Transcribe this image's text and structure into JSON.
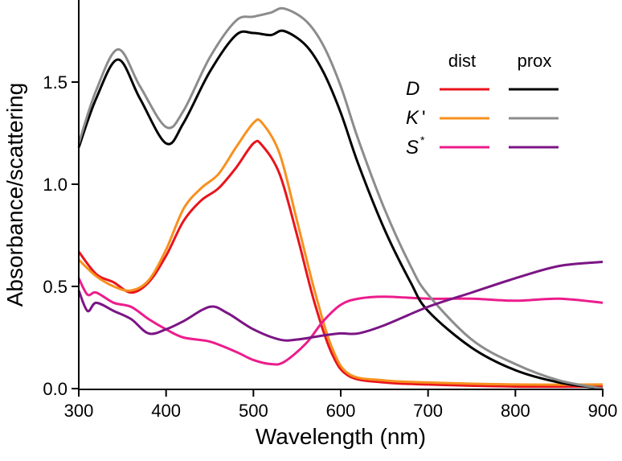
{
  "chart_data": {
    "type": "line",
    "title": "",
    "xlabel": "Wavelength (nm)",
    "ylabel": "Absorbance/scattering",
    "xlim": [
      300,
      900
    ],
    "ylim": [
      0,
      1.9
    ],
    "xticks": [
      "300",
      "400",
      "500",
      "600",
      "700",
      "800",
      "900"
    ],
    "xtick_values": [
      300,
      400,
      500,
      600,
      700,
      800,
      900
    ],
    "yticks": [
      "0.0",
      "0.5",
      "1.0",
      "1.5"
    ],
    "ytick_values": [
      0,
      0.5,
      1.0,
      1.5
    ],
    "grid": false,
    "legend": {
      "placement": "top-right",
      "col_headers": [
        "dist",
        "prox"
      ],
      "rows": [
        {
          "label": "D",
          "sup": ""
        },
        {
          "label": "K",
          "sup": "'"
        },
        {
          "label": "S",
          "sup": "*"
        }
      ]
    },
    "series": [
      {
        "name": "D dist",
        "color": "#e8141c",
        "x": [
          300,
          320,
          340,
          360,
          380,
          400,
          420,
          440,
          460,
          480,
          500,
          510,
          530,
          550,
          570,
          590,
          610,
          650,
          700,
          800,
          900
        ],
        "y": [
          0.67,
          0.56,
          0.52,
          0.47,
          0.52,
          0.65,
          0.82,
          0.92,
          0.98,
          1.08,
          1.2,
          1.19,
          1.05,
          0.75,
          0.42,
          0.17,
          0.06,
          0.03,
          0.02,
          0.01,
          0.01
        ]
      },
      {
        "name": "K' dist",
        "color": "#f7901e",
        "x": [
          300,
          320,
          340,
          360,
          380,
          400,
          420,
          440,
          460,
          480,
          500,
          510,
          530,
          550,
          570,
          590,
          610,
          650,
          700,
          800,
          900
        ],
        "y": [
          0.63,
          0.55,
          0.5,
          0.48,
          0.53,
          0.68,
          0.88,
          0.98,
          1.05,
          1.18,
          1.3,
          1.3,
          1.15,
          0.82,
          0.48,
          0.2,
          0.07,
          0.04,
          0.03,
          0.02,
          0.02
        ]
      },
      {
        "name": "S* dist",
        "color": "#ec1c8c",
        "x": [
          300,
          310,
          320,
          340,
          360,
          380,
          400,
          420,
          450,
          480,
          500,
          520,
          535,
          560,
          580,
          600,
          620,
          650,
          700,
          750,
          800,
          850,
          900
        ],
        "y": [
          0.54,
          0.46,
          0.47,
          0.42,
          0.4,
          0.34,
          0.29,
          0.25,
          0.23,
          0.18,
          0.14,
          0.12,
          0.13,
          0.22,
          0.33,
          0.41,
          0.44,
          0.45,
          0.44,
          0.44,
          0.43,
          0.44,
          0.42
        ]
      },
      {
        "name": "D prox",
        "color": "#000000",
        "x": [
          300,
          320,
          345,
          370,
          400,
          420,
          450,
          480,
          500,
          520,
          535,
          560,
          580,
          600,
          620,
          650,
          680,
          700,
          750,
          800,
          850,
          900
        ],
        "y": [
          1.18,
          1.42,
          1.61,
          1.42,
          1.2,
          1.3,
          1.55,
          1.73,
          1.74,
          1.73,
          1.75,
          1.68,
          1.55,
          1.35,
          1.1,
          0.78,
          0.52,
          0.38,
          0.2,
          0.09,
          0.03,
          0.0
        ]
      },
      {
        "name": "K' prox",
        "color": "#8c8c8c",
        "x": [
          300,
          320,
          345,
          370,
          400,
          420,
          450,
          480,
          500,
          520,
          535,
          560,
          580,
          600,
          620,
          650,
          680,
          700,
          750,
          800,
          850,
          900
        ],
        "y": [
          1.2,
          1.46,
          1.66,
          1.48,
          1.28,
          1.36,
          1.62,
          1.8,
          1.82,
          1.84,
          1.86,
          1.8,
          1.68,
          1.48,
          1.22,
          0.88,
          0.6,
          0.46,
          0.24,
          0.12,
          0.04,
          0.0
        ]
      },
      {
        "name": "S* prox",
        "color": "#7b1585",
        "x": [
          300,
          310,
          320,
          340,
          360,
          380,
          400,
          420,
          450,
          470,
          500,
          530,
          550,
          580,
          600,
          620,
          650,
          700,
          750,
          800,
          850,
          900
        ],
        "y": [
          0.48,
          0.38,
          0.42,
          0.38,
          0.34,
          0.27,
          0.29,
          0.33,
          0.4,
          0.37,
          0.29,
          0.24,
          0.24,
          0.26,
          0.27,
          0.27,
          0.31,
          0.4,
          0.47,
          0.54,
          0.6,
          0.62
        ]
      }
    ]
  }
}
